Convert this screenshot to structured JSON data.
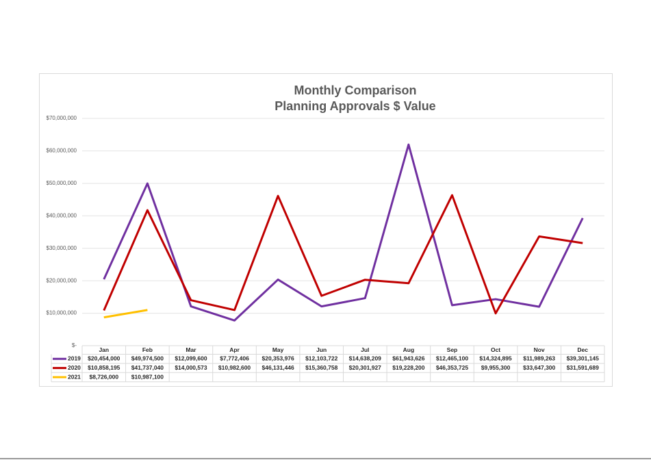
{
  "chart_data": {
    "type": "line",
    "title": "Monthly Comparison",
    "subtitle": "Planning Approvals $ Value",
    "categories": [
      "Jan",
      "Feb",
      "Mar",
      "Apr",
      "May",
      "Jun",
      "Jul",
      "Aug",
      "Sep",
      "Oct",
      "Nov",
      "Dec"
    ],
    "series": [
      {
        "name": "2019",
        "color": "#7030a0",
        "values": [
          20454000,
          49974500,
          12099600,
          7772406,
          20353976,
          12103722,
          14638209,
          61943626,
          12465100,
          14324895,
          11989263,
          39301145
        ],
        "value_labels": [
          "$20,454,000",
          "$49,974,500",
          "$12,099,600",
          "$7,772,406",
          "$20,353,976",
          "$12,103,722",
          "$14,638,209",
          "$61,943,626",
          "$12,465,100",
          "$14,324,895",
          "$11,989,263",
          "$39,301,145"
        ]
      },
      {
        "name": "2020",
        "color": "#c00000",
        "values": [
          10858195,
          41737040,
          14000573,
          10982600,
          46131446,
          15360758,
          20301927,
          19228200,
          46353725,
          9955300,
          33647300,
          31591689
        ],
        "value_labels": [
          "$10,858,195",
          "$41,737,040",
          "$14,000,573",
          "$10,982,600",
          "$46,131,446",
          "$15,360,758",
          "$20,301,927",
          "$19,228,200",
          "$46,353,725",
          "$9,955,300",
          "$33,647,300",
          "$31,591,689"
        ]
      },
      {
        "name": "2021",
        "color": "#ffc000",
        "values": [
          8726000,
          10987100,
          null,
          null,
          null,
          null,
          null,
          null,
          null,
          null,
          null,
          null
        ],
        "value_labels": [
          "$8,726,000",
          "$10,987,100",
          null,
          null,
          null,
          null,
          null,
          null,
          null,
          null,
          null,
          null
        ]
      }
    ],
    "ylim": [
      0,
      70000000
    ],
    "yticks": [
      {
        "value": 0,
        "label": "$-"
      },
      {
        "value": 10000000,
        "label": "$10,000,000"
      },
      {
        "value": 20000000,
        "label": "$20,000,000"
      },
      {
        "value": 30000000,
        "label": "$30,000,000"
      },
      {
        "value": 40000000,
        "label": "$40,000,000"
      },
      {
        "value": 50000000,
        "label": "$50,000,000"
      },
      {
        "value": 60000000,
        "label": "$60,000,000"
      },
      {
        "value": 70000000,
        "label": "$70,000,000"
      }
    ],
    "grid": true
  }
}
